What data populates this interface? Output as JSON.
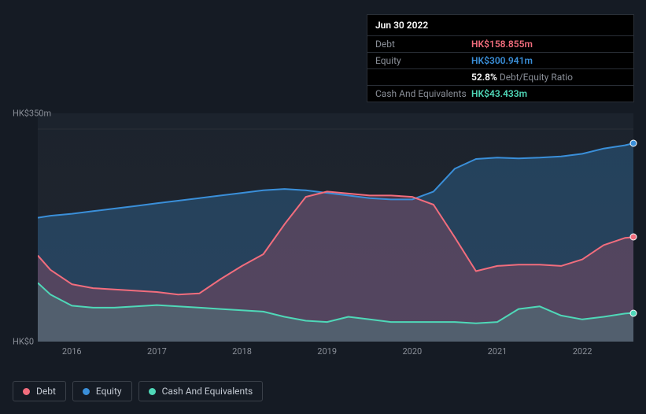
{
  "tooltip": {
    "date": "Jun 30 2022",
    "rows": [
      {
        "label": "Debt",
        "value": "HK$158.855m",
        "color": "#f26d7d"
      },
      {
        "label": "Equity",
        "value": "HK$300.941m",
        "color": "#3a8fd9"
      },
      {
        "label": "",
        "value": "52.8%",
        "suffix": "Debt/Equity Ratio",
        "color": "#ffffff"
      },
      {
        "label": "Cash And Equivalents",
        "value": "HK$43.433m",
        "color": "#4fd8b8"
      }
    ]
  },
  "chart": {
    "type": "area",
    "background_top": "#1c232d",
    "background_bot": "#22252e",
    "ylim": [
      0,
      350
    ],
    "ylabels": [
      {
        "v": 350,
        "text": "HK$350m"
      },
      {
        "v": 0,
        "text": "HK$0"
      }
    ],
    "xlim": [
      2015.6,
      2022.6
    ],
    "xticks": [
      2016,
      2017,
      2018,
      2019,
      2020,
      2021,
      2022
    ],
    "series": {
      "equity": {
        "name": "Equity",
        "color": "#3a8fd9",
        "fill": "rgba(58,143,217,0.28)",
        "data": [
          [
            2015.6,
            190
          ],
          [
            2015.75,
            193
          ],
          [
            2016.0,
            196
          ],
          [
            2016.25,
            200
          ],
          [
            2016.5,
            204
          ],
          [
            2016.75,
            208
          ],
          [
            2017.0,
            212
          ],
          [
            2017.25,
            216
          ],
          [
            2017.5,
            220
          ],
          [
            2017.75,
            224
          ],
          [
            2018.0,
            228
          ],
          [
            2018.25,
            232
          ],
          [
            2018.5,
            234
          ],
          [
            2018.75,
            232
          ],
          [
            2019.0,
            228
          ],
          [
            2019.25,
            224
          ],
          [
            2019.5,
            220
          ],
          [
            2019.75,
            218
          ],
          [
            2020.0,
            218
          ],
          [
            2020.25,
            230
          ],
          [
            2020.5,
            265
          ],
          [
            2020.75,
            280
          ],
          [
            2021.0,
            282
          ],
          [
            2021.25,
            281
          ],
          [
            2021.5,
            282
          ],
          [
            2021.75,
            284
          ],
          [
            2022.0,
            288
          ],
          [
            2022.25,
            296
          ],
          [
            2022.5,
            301
          ],
          [
            2022.6,
            304
          ]
        ]
      },
      "debt": {
        "name": "Debt",
        "color": "#f26d7d",
        "fill": "rgba(176,78,99,0.32)",
        "data": [
          [
            2015.6,
            132
          ],
          [
            2015.75,
            110
          ],
          [
            2016.0,
            88
          ],
          [
            2016.25,
            82
          ],
          [
            2016.5,
            80
          ],
          [
            2016.75,
            78
          ],
          [
            2017.0,
            76
          ],
          [
            2017.25,
            72
          ],
          [
            2017.5,
            74
          ],
          [
            2017.75,
            96
          ],
          [
            2018.0,
            116
          ],
          [
            2018.25,
            134
          ],
          [
            2018.5,
            180
          ],
          [
            2018.75,
            222
          ],
          [
            2019.0,
            230
          ],
          [
            2019.25,
            227
          ],
          [
            2019.5,
            224
          ],
          [
            2019.75,
            224
          ],
          [
            2020.0,
            222
          ],
          [
            2020.25,
            210
          ],
          [
            2020.5,
            160
          ],
          [
            2020.75,
            108
          ],
          [
            2021.0,
            116
          ],
          [
            2021.25,
            118
          ],
          [
            2021.5,
            118
          ],
          [
            2021.75,
            116
          ],
          [
            2022.0,
            126
          ],
          [
            2022.25,
            148
          ],
          [
            2022.5,
            159
          ],
          [
            2022.6,
            160
          ]
        ]
      },
      "cash": {
        "name": "Cash And Equivalents",
        "color": "#4fd8b8",
        "fill": "rgba(79,216,184,0.18)",
        "data": [
          [
            2015.6,
            90
          ],
          [
            2015.75,
            72
          ],
          [
            2016.0,
            55
          ],
          [
            2016.25,
            52
          ],
          [
            2016.5,
            52
          ],
          [
            2016.75,
            54
          ],
          [
            2017.0,
            56
          ],
          [
            2017.25,
            54
          ],
          [
            2017.5,
            52
          ],
          [
            2017.75,
            50
          ],
          [
            2018.0,
            48
          ],
          [
            2018.25,
            46
          ],
          [
            2018.5,
            38
          ],
          [
            2018.75,
            32
          ],
          [
            2019.0,
            30
          ],
          [
            2019.25,
            38
          ],
          [
            2019.5,
            34
          ],
          [
            2019.75,
            30
          ],
          [
            2020.0,
            30
          ],
          [
            2020.25,
            30
          ],
          [
            2020.5,
            30
          ],
          [
            2020.75,
            28
          ],
          [
            2021.0,
            30
          ],
          [
            2021.25,
            50
          ],
          [
            2021.5,
            54
          ],
          [
            2021.75,
            40
          ],
          [
            2022.0,
            34
          ],
          [
            2022.25,
            38
          ],
          [
            2022.5,
            43
          ],
          [
            2022.6,
            44
          ]
        ]
      }
    },
    "legend": [
      {
        "key": "debt",
        "label": "Debt",
        "color": "#f26d7d"
      },
      {
        "key": "equity",
        "label": "Equity",
        "color": "#3a8fd9"
      },
      {
        "key": "cash",
        "label": "Cash And Equivalents",
        "color": "#4fd8b8"
      }
    ]
  }
}
